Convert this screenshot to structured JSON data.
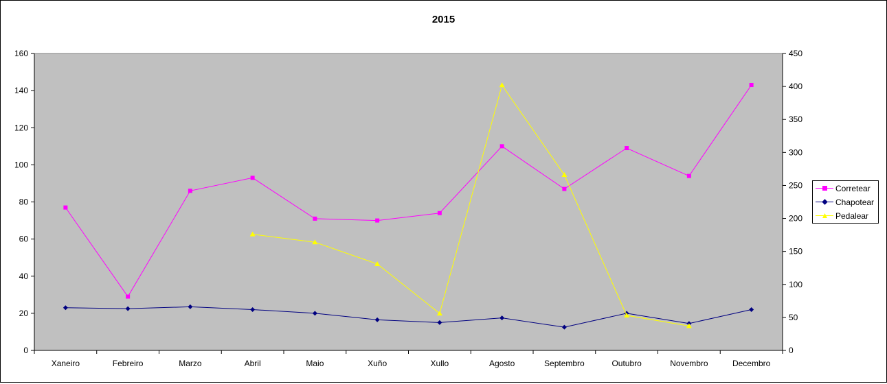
{
  "chart_data": {
    "type": "line",
    "title": "2015",
    "categories": [
      "Xaneiro",
      "Febreiro",
      "Marzo",
      "Abril",
      "Maio",
      "Xuño",
      "Xullo",
      "Agosto",
      "Septembro",
      "Outubro",
      "Novembro",
      "Decembro"
    ],
    "y_left": {
      "min": 0,
      "max": 160,
      "step": 20,
      "ticks": [
        0,
        20,
        40,
        60,
        80,
        100,
        120,
        140,
        160
      ]
    },
    "y_right": {
      "min": 0,
      "max": 450,
      "step": 50,
      "ticks": [
        0,
        50,
        100,
        150,
        200,
        250,
        300,
        350,
        400,
        450
      ]
    },
    "plot_background": "#c0c0c0",
    "grid": false,
    "legend_position": "right",
    "series": [
      {
        "name": "Corretear",
        "axis": "left",
        "color": "#ff00ff",
        "marker": "square",
        "values": [
          77,
          29,
          86,
          93,
          71,
          70,
          74,
          110,
          87,
          109,
          94,
          143
        ]
      },
      {
        "name": "Chapotear",
        "axis": "left",
        "color": "#000080",
        "marker": "diamond",
        "values": [
          23,
          22.5,
          23.5,
          22,
          20,
          16.5,
          15,
          17.5,
          12.5,
          20,
          14.5,
          22
        ]
      },
      {
        "name": "Pedalear",
        "axis": "right",
        "color": "#ffff00",
        "marker": "triangle",
        "values": [
          null,
          null,
          null,
          176,
          164,
          131,
          56,
          402,
          266,
          53,
          37,
          null
        ]
      }
    ]
  }
}
